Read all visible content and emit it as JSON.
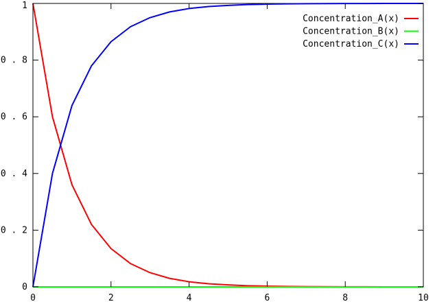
{
  "chart_data": {
    "type": "line",
    "title": "",
    "xlabel": "",
    "ylabel": "",
    "xlim": [
      0,
      10
    ],
    "ylim": [
      0,
      1
    ],
    "x_ticks": [
      0,
      2,
      4,
      6,
      8,
      10
    ],
    "y_ticks": [
      0,
      0.2,
      0.4,
      0.6,
      0.8,
      1
    ],
    "x_tick_labels": [
      "0",
      "2",
      "4",
      "6",
      "8",
      "10"
    ],
    "y_tick_labels": [
      "0",
      "0 . 2",
      "0 . 4",
      "0 . 6",
      "0 . 8",
      "1"
    ],
    "grid": false,
    "legend_position": "top-right",
    "series": [
      {
        "name": "Concentration_A(x)",
        "color": "#ff0000",
        "x": [
          0,
          0.5,
          1,
          1.5,
          2,
          2.5,
          3,
          3.5,
          4,
          4.5,
          5,
          5.5,
          6,
          6.5,
          7,
          7.5,
          8,
          8.5,
          9,
          9.5,
          10
        ],
        "values": [
          1,
          0.6,
          0.36,
          0.22,
          0.135,
          0.082,
          0.05,
          0.03,
          0.018,
          0.011,
          0.007,
          0.004,
          0.0025,
          0.0015,
          0.0009,
          0.0005,
          0.0003,
          0.0002,
          0.0001,
          7e-05,
          5e-05
        ]
      },
      {
        "name": "Concentration_B(x)",
        "color": "#00ff00",
        "x": [
          0,
          0.5,
          1,
          1.5,
          2,
          2.5,
          3,
          3.5,
          4,
          4.5,
          5,
          5.5,
          6,
          6.5,
          7,
          7.5,
          8,
          8.5,
          9,
          9.5,
          10
        ],
        "values": [
          0,
          0,
          0,
          0,
          0,
          0,
          0,
          0,
          0,
          0,
          0,
          0,
          0,
          0,
          0,
          0,
          0,
          0,
          0,
          0,
          0
        ]
      },
      {
        "name": "Concentration_C(x)",
        "color": "#0000ff",
        "x": [
          0,
          0.5,
          1,
          1.5,
          2,
          2.5,
          3,
          3.5,
          4,
          4.5,
          5,
          5.5,
          6,
          6.5,
          7,
          7.5,
          8,
          8.5,
          9,
          9.5,
          10
        ],
        "values": [
          0,
          0.4,
          0.64,
          0.78,
          0.865,
          0.918,
          0.95,
          0.97,
          0.982,
          0.989,
          0.993,
          0.996,
          0.9975,
          0.9985,
          0.9991,
          0.9995,
          0.9997,
          0.9998,
          0.9999,
          0.99993,
          0.99995
        ]
      }
    ]
  }
}
